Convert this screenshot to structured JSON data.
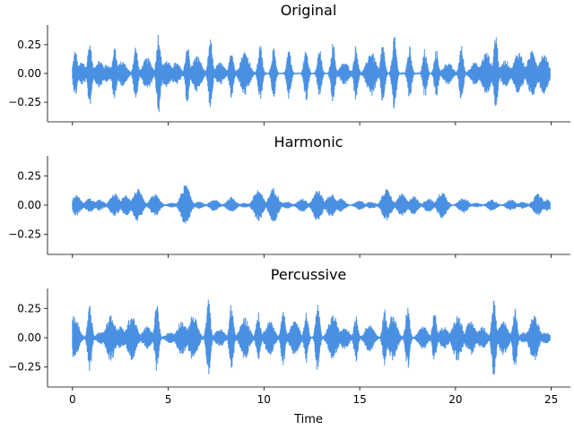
{
  "chart_data": {
    "type": "line",
    "color": "#4a90e2",
    "shared_x": {
      "label": "Time",
      "range": [
        -1.3,
        26.0
      ],
      "ticks": [
        0,
        5,
        10,
        15,
        20,
        25
      ]
    },
    "y_range": [
      -0.42,
      0.42
    ],
    "y_ticks": [
      0.25,
      0.0,
      -0.25
    ],
    "y_tick_labels": [
      "0.25",
      "0.00",
      "−0.25"
    ],
    "panels": [
      {
        "title": "Original",
        "envelope": [
          {
            "t": 0.15,
            "amp": 0.21
          },
          {
            "t": 0.5,
            "amp": 0.1
          },
          {
            "t": 0.9,
            "amp": 0.29
          },
          {
            "t": 1.4,
            "amp": 0.12
          },
          {
            "t": 1.8,
            "amp": 0.08
          },
          {
            "t": 2.2,
            "amp": 0.25
          },
          {
            "t": 2.6,
            "amp": 0.11
          },
          {
            "t": 3.3,
            "amp": 0.25
          },
          {
            "t": 3.9,
            "amp": 0.14
          },
          {
            "t": 4.5,
            "amp": 0.38
          },
          {
            "t": 4.9,
            "amp": 0.12
          },
          {
            "t": 5.4,
            "amp": 0.1
          },
          {
            "t": 6.0,
            "amp": 0.27
          },
          {
            "t": 6.5,
            "amp": 0.16
          },
          {
            "t": 7.2,
            "amp": 0.31
          },
          {
            "t": 7.7,
            "amp": 0.1
          },
          {
            "t": 8.3,
            "amp": 0.23
          },
          {
            "t": 9.0,
            "amp": 0.2
          },
          {
            "t": 9.8,
            "amp": 0.26
          },
          {
            "t": 10.5,
            "amp": 0.22
          },
          {
            "t": 11.3,
            "amp": 0.23
          },
          {
            "t": 12.2,
            "amp": 0.25
          },
          {
            "t": 12.9,
            "amp": 0.22
          },
          {
            "t": 13.6,
            "amp": 0.27
          },
          {
            "t": 14.2,
            "amp": 0.1
          },
          {
            "t": 14.8,
            "amp": 0.25
          },
          {
            "t": 15.6,
            "amp": 0.2
          },
          {
            "t": 16.2,
            "amp": 0.27
          },
          {
            "t": 16.8,
            "amp": 0.34
          },
          {
            "t": 17.6,
            "amp": 0.24
          },
          {
            "t": 18.4,
            "amp": 0.22
          },
          {
            "t": 19.0,
            "amp": 0.21
          },
          {
            "t": 19.6,
            "amp": 0.1
          },
          {
            "t": 20.3,
            "amp": 0.25
          },
          {
            "t": 21.0,
            "amp": 0.1
          },
          {
            "t": 21.6,
            "amp": 0.19
          },
          {
            "t": 22.1,
            "amp": 0.37
          },
          {
            "t": 22.6,
            "amp": 0.12
          },
          {
            "t": 23.3,
            "amp": 0.2
          },
          {
            "t": 24.0,
            "amp": 0.2
          },
          {
            "t": 24.6,
            "amp": 0.18
          },
          {
            "t": 24.9,
            "amp": 0.05
          }
        ]
      },
      {
        "title": "Harmonic",
        "envelope": [
          {
            "t": 0.2,
            "amp": 0.09
          },
          {
            "t": 0.9,
            "amp": 0.06
          },
          {
            "t": 1.4,
            "amp": 0.05
          },
          {
            "t": 2.2,
            "amp": 0.1
          },
          {
            "t": 2.8,
            "amp": 0.09
          },
          {
            "t": 3.4,
            "amp": 0.14
          },
          {
            "t": 4.3,
            "amp": 0.1
          },
          {
            "t": 5.2,
            "amp": 0.02
          },
          {
            "t": 5.9,
            "amp": 0.18
          },
          {
            "t": 6.6,
            "amp": 0.03
          },
          {
            "t": 7.4,
            "amp": 0.05
          },
          {
            "t": 8.3,
            "amp": 0.07
          },
          {
            "t": 9.0,
            "amp": 0.02
          },
          {
            "t": 9.7,
            "amp": 0.14
          },
          {
            "t": 10.5,
            "amp": 0.15
          },
          {
            "t": 11.2,
            "amp": 0.03
          },
          {
            "t": 12.0,
            "amp": 0.06
          },
          {
            "t": 12.8,
            "amp": 0.14
          },
          {
            "t": 13.5,
            "amp": 0.1
          },
          {
            "t": 14.0,
            "amp": 0.06
          },
          {
            "t": 15.0,
            "amp": 0.04
          },
          {
            "t": 15.6,
            "amp": 0.03
          },
          {
            "t": 16.4,
            "amp": 0.14
          },
          {
            "t": 17.2,
            "amp": 0.1
          },
          {
            "t": 17.8,
            "amp": 0.08
          },
          {
            "t": 18.6,
            "amp": 0.06
          },
          {
            "t": 19.3,
            "amp": 0.12
          },
          {
            "t": 20.4,
            "amp": 0.07
          },
          {
            "t": 21.1,
            "amp": 0.02
          },
          {
            "t": 21.9,
            "amp": 0.05
          },
          {
            "t": 22.9,
            "amp": 0.05
          },
          {
            "t": 23.5,
            "amp": 0.03
          },
          {
            "t": 24.3,
            "amp": 0.1
          },
          {
            "t": 24.8,
            "amp": 0.05
          }
        ]
      },
      {
        "title": "Percussive",
        "envelope": [
          {
            "t": 0.1,
            "amp": 0.19
          },
          {
            "t": 0.9,
            "amp": 0.3
          },
          {
            "t": 1.5,
            "amp": 0.06
          },
          {
            "t": 2.0,
            "amp": 0.2
          },
          {
            "t": 2.5,
            "amp": 0.1
          },
          {
            "t": 3.1,
            "amp": 0.2
          },
          {
            "t": 3.9,
            "amp": 0.1
          },
          {
            "t": 4.4,
            "amp": 0.3
          },
          {
            "t": 5.1,
            "amp": 0.05
          },
          {
            "t": 5.7,
            "amp": 0.15
          },
          {
            "t": 6.3,
            "amp": 0.2
          },
          {
            "t": 7.1,
            "amp": 0.33
          },
          {
            "t": 7.7,
            "amp": 0.08
          },
          {
            "t": 8.3,
            "amp": 0.3
          },
          {
            "t": 9.0,
            "amp": 0.18
          },
          {
            "t": 9.7,
            "amp": 0.22
          },
          {
            "t": 10.3,
            "amp": 0.15
          },
          {
            "t": 11.0,
            "amp": 0.25
          },
          {
            "t": 11.6,
            "amp": 0.15
          },
          {
            "t": 12.2,
            "amp": 0.22
          },
          {
            "t": 12.8,
            "amp": 0.3
          },
          {
            "t": 13.6,
            "amp": 0.2
          },
          {
            "t": 14.2,
            "amp": 0.1
          },
          {
            "t": 14.8,
            "amp": 0.21
          },
          {
            "t": 15.5,
            "amp": 0.12
          },
          {
            "t": 16.3,
            "amp": 0.25
          },
          {
            "t": 16.7,
            "amp": 0.2
          },
          {
            "t": 17.5,
            "amp": 0.28
          },
          {
            "t": 18.3,
            "amp": 0.1
          },
          {
            "t": 18.9,
            "amp": 0.22
          },
          {
            "t": 19.4,
            "amp": 0.1
          },
          {
            "t": 20.1,
            "amp": 0.2
          },
          {
            "t": 20.8,
            "amp": 0.15
          },
          {
            "t": 21.4,
            "amp": 0.1
          },
          {
            "t": 22.0,
            "amp": 0.34
          },
          {
            "t": 22.5,
            "amp": 0.15
          },
          {
            "t": 23.1,
            "amp": 0.28
          },
          {
            "t": 23.6,
            "amp": 0.05
          },
          {
            "t": 24.1,
            "amp": 0.2
          },
          {
            "t": 24.7,
            "amp": 0.05
          }
        ]
      }
    ]
  }
}
